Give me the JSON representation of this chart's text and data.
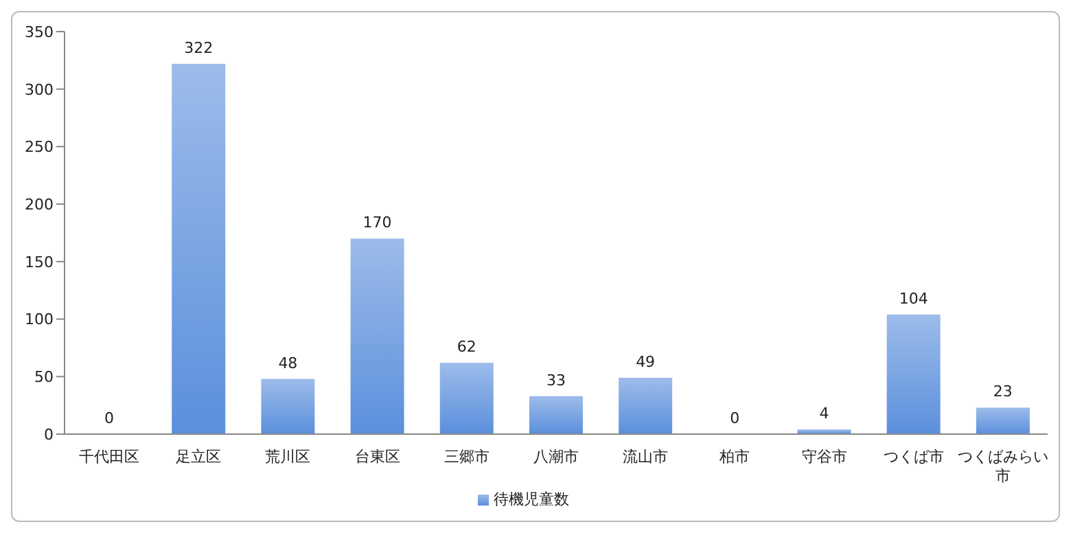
{
  "chart_data": {
    "type": "bar",
    "categories": [
      "千代田区",
      "足立区",
      "荒川区",
      "台東区",
      "三郷市",
      "八潮市",
      "流山市",
      "柏市",
      "守谷市",
      "つくば市",
      "つくばみらい市"
    ],
    "series": [
      {
        "name": "待機児童数",
        "color": "#5b8fdc",
        "values": [
          0,
          322,
          48,
          170,
          62,
          33,
          49,
          0,
          4,
          104,
          23
        ]
      }
    ],
    "ylim": [
      0,
      350
    ],
    "yticks": [
      0,
      50,
      100,
      150,
      200,
      250,
      300,
      350
    ],
    "grid": false,
    "legend": "bottom",
    "data_labels": true
  }
}
